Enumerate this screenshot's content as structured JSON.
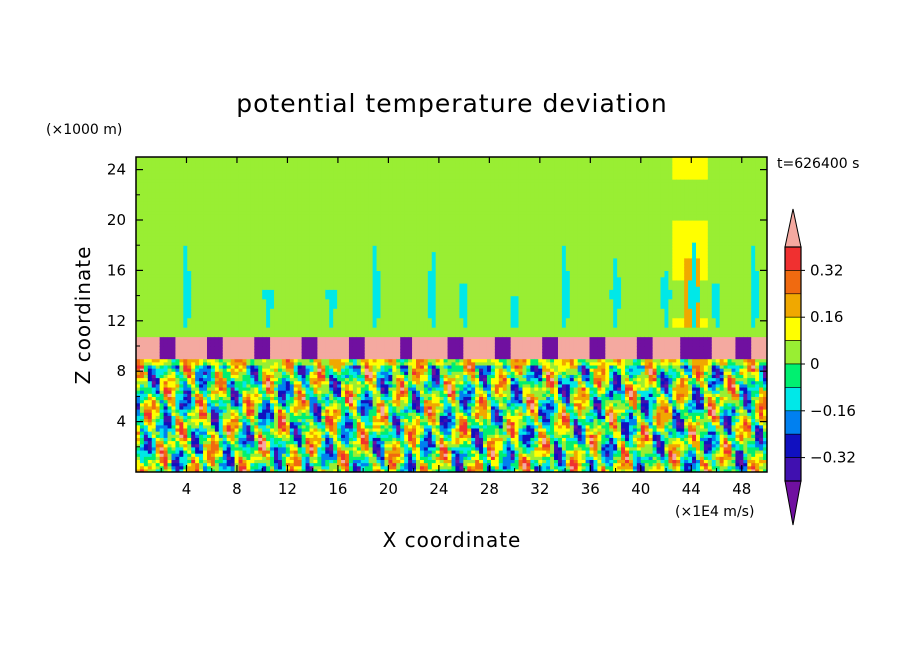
{
  "chart_data": {
    "type": "heatmap",
    "title": "potential temperature deviation",
    "xlabel": "X coordinate",
    "ylabel": "Z coordinate",
    "x_unit": "(×1E4 m/s)",
    "y_unit": "(×1000 m)",
    "time_label": "t=626400 s",
    "xlim": [
      0,
      50
    ],
    "ylim": [
      0,
      25
    ],
    "x_ticks": [
      "4",
      "8",
      "12",
      "16",
      "20",
      "24",
      "28",
      "32",
      "36",
      "40",
      "44",
      "48"
    ],
    "y_ticks": [
      "4",
      "8",
      "12",
      "16",
      "20",
      "24"
    ],
    "colorbar": {
      "labels": [
        "0.32",
        "0.16",
        "0",
        "−0.16",
        "−0.32"
      ],
      "label_values": [
        0.32,
        0.16,
        0,
        -0.16,
        -0.32
      ],
      "levels": [
        {
          "from": 0.4,
          "to": null,
          "color": "#f4a9a0"
        },
        {
          "from": 0.32,
          "to": 0.4,
          "color": "#f03030"
        },
        {
          "from": 0.24,
          "to": 0.32,
          "color": "#f06a10"
        },
        {
          "from": 0.16,
          "to": 0.24,
          "color": "#f0a800"
        },
        {
          "from": 0.08,
          "to": 0.16,
          "color": "#ffff00"
        },
        {
          "from": 0,
          "to": 0.08,
          "color": "#99ee33"
        },
        {
          "from": -0.08,
          "to": 0,
          "color": "#00f070"
        },
        {
          "from": -0.16,
          "to": -0.08,
          "color": "#00e8e8"
        },
        {
          "from": -0.24,
          "to": -0.16,
          "color": "#0080f0"
        },
        {
          "from": -0.32,
          "to": -0.24,
          "color": "#1010c0"
        },
        {
          "from": -0.4,
          "to": -0.32,
          "color": "#4010b0"
        },
        {
          "from": null,
          "to": -0.4,
          "color": "#7010a0"
        }
      ]
    },
    "field_summary": {
      "upper_layer": {
        "z_range": [
          10.7,
          25
        ],
        "dominant_level": "0 to 0.08",
        "notable": "yellow/orange warm column near x≈43–45"
      },
      "tropopause_band": {
        "z_range": [
          9,
          10.7
        ],
        "dominant_level": ">0.4 with periodic <-0.4 patches"
      },
      "lower_layer": {
        "z_range": [
          0,
          9
        ],
        "pattern": "turbulent convection with mixed positive and negative deviations"
      }
    }
  }
}
